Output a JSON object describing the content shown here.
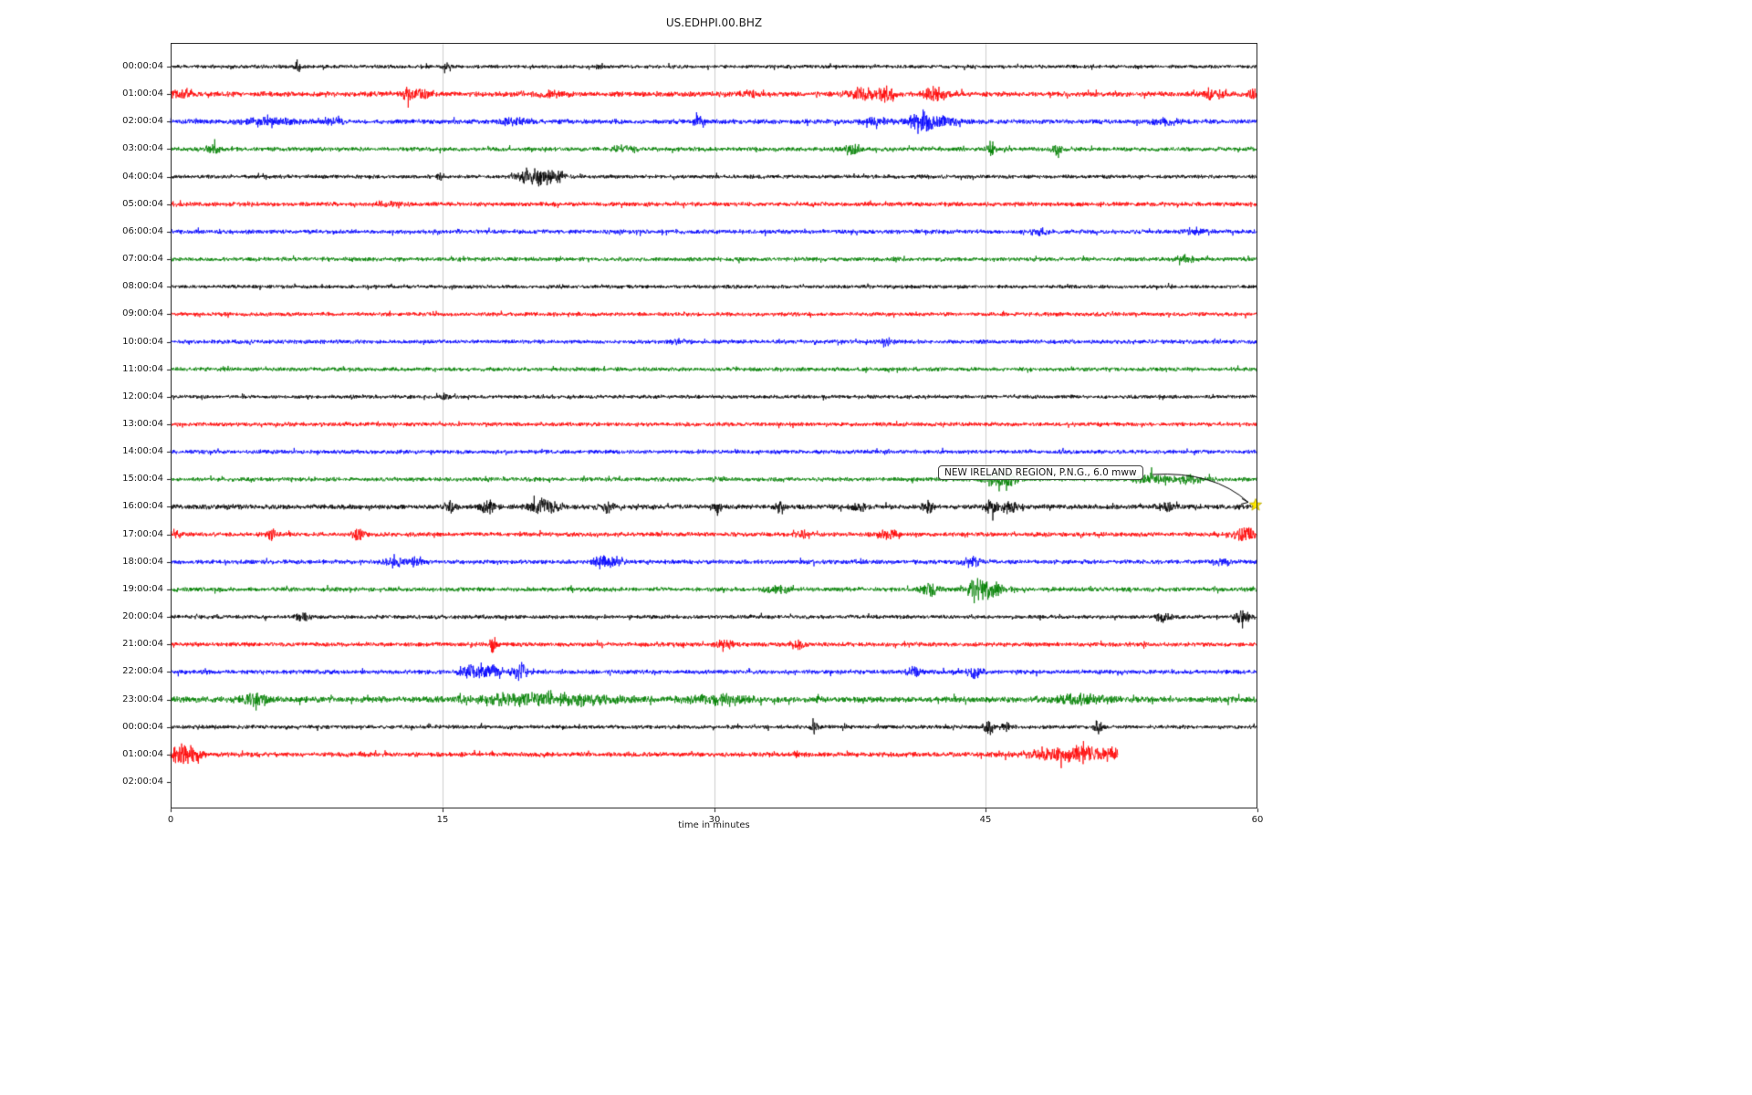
{
  "window": {
    "background": "#ffffff"
  },
  "chart_data": {
    "type": "line",
    "subtype": "seismogram-helicorder",
    "title": "US.EDHPI.00.BHZ",
    "xlabel": "time in minutes",
    "x_range": [
      0,
      60
    ],
    "x_ticks": [
      0,
      15,
      30,
      45,
      60
    ],
    "minutes_per_row": 60,
    "grid": {
      "vertical_ticks": [
        15,
        30,
        45
      ],
      "color": "#cccccc"
    },
    "colors": {
      "black": "#000000",
      "red": "#ff0000",
      "blue": "#0000ff",
      "green": "#008000"
    },
    "events_format": "[minute, extra_amplitude_px, width_minutes]",
    "annotation": {
      "text": "NEW IRELAND REGION, P.N.G., 6.0 mww",
      "target_row_index": 16,
      "target_minute": 59.9,
      "marker": "yellow-star",
      "marker_color": "#ffe600"
    },
    "rows": [
      {
        "label": "00:00:04",
        "color": "#000000",
        "base": 2.2,
        "end_minute": 60,
        "events": [
          [
            7.0,
            9,
            0.15
          ],
          [
            15.2,
            2.5,
            0.3
          ],
          [
            23.7,
            5,
            0.2
          ]
        ]
      },
      {
        "label": "01:00:04",
        "color": "#ff0000",
        "base": 3.0,
        "end_minute": 60,
        "events": [
          [
            0.7,
            6,
            0.5
          ],
          [
            13.2,
            6,
            0.4
          ],
          [
            13.9,
            5,
            0.3
          ],
          [
            21,
            2,
            1
          ],
          [
            32,
            2.5,
            0.5
          ],
          [
            38.2,
            7,
            0.8
          ],
          [
            39.6,
            6,
            0.5
          ],
          [
            42.3,
            8,
            0.6
          ],
          [
            57.5,
            5,
            0.6
          ],
          [
            59.8,
            4,
            0.3
          ]
        ]
      },
      {
        "label": "02:00:04",
        "color": "#0000ff",
        "base": 2.8,
        "end_minute": 60,
        "events": [
          [
            5.5,
            4,
            1.5
          ],
          [
            9,
            3,
            0.5
          ],
          [
            19,
            3,
            0.8
          ],
          [
            29.2,
            7,
            0.3
          ],
          [
            39,
            3,
            0.8
          ],
          [
            41.5,
            11,
            0.7
          ],
          [
            42.6,
            5,
            0.8
          ],
          [
            55,
            3,
            0.8
          ]
        ]
      },
      {
        "label": "03:00:04",
        "color": "#008000",
        "base": 2.5,
        "end_minute": 60,
        "events": [
          [
            2.3,
            5,
            0.4
          ],
          [
            25,
            3,
            0.6
          ],
          [
            37.6,
            7,
            0.4
          ],
          [
            45.3,
            9,
            0.2
          ],
          [
            48.9,
            6,
            0.3
          ]
        ]
      },
      {
        "label": "04:00:04",
        "color": "#000000",
        "base": 2.2,
        "end_minute": 60,
        "events": [
          [
            14.9,
            5,
            0.2
          ],
          [
            19.6,
            8,
            0.5
          ],
          [
            20.5,
            10,
            0.6
          ],
          [
            21.3,
            6,
            0.4
          ]
        ]
      },
      {
        "label": "05:00:04",
        "color": "#ff0000",
        "base": 2.6,
        "end_minute": 60,
        "events": [
          [
            12,
            2,
            0.8
          ]
        ]
      },
      {
        "label": "06:00:04",
        "color": "#0000ff",
        "base": 2.6,
        "end_minute": 60,
        "events": [
          [
            48,
            2.5,
            0.6
          ],
          [
            56.5,
            3.5,
            0.5
          ]
        ]
      },
      {
        "label": "07:00:04",
        "color": "#008000",
        "base": 2.4,
        "end_minute": 60,
        "events": [
          [
            56,
            3,
            0.5
          ]
        ]
      },
      {
        "label": "08:00:04",
        "color": "#000000",
        "base": 2.2,
        "end_minute": 60,
        "events": []
      },
      {
        "label": "09:00:04",
        "color": "#ff0000",
        "base": 2.4,
        "end_minute": 60,
        "events": []
      },
      {
        "label": "10:00:04",
        "color": "#0000ff",
        "base": 2.4,
        "end_minute": 60,
        "events": [
          [
            28,
            3,
            0.4
          ],
          [
            39.5,
            3,
            0.4
          ]
        ]
      },
      {
        "label": "11:00:04",
        "color": "#008000",
        "base": 2.4,
        "end_minute": 60,
        "events": []
      },
      {
        "label": "12:00:04",
        "color": "#000000",
        "base": 2.2,
        "end_minute": 60,
        "events": [
          [
            15.2,
            3,
            0.2
          ]
        ]
      },
      {
        "label": "13:00:04",
        "color": "#ff0000",
        "base": 2.4,
        "end_minute": 60,
        "events": []
      },
      {
        "label": "14:00:04",
        "color": "#0000ff",
        "base": 2.4,
        "end_minute": 60,
        "events": []
      },
      {
        "label": "15:00:04",
        "color": "#008000",
        "base": 2.5,
        "end_minute": 60,
        "events": [
          [
            45.5,
            10,
            0.5
          ],
          [
            46.3,
            7,
            0.6
          ],
          [
            54.0,
            6,
            0.8
          ],
          [
            56.2,
            4,
            1.0
          ]
        ]
      },
      {
        "label": "16:00:04",
        "color": "#000000",
        "base": 2.9,
        "end_minute": 60,
        "events": [
          [
            15.4,
            6,
            0.3
          ],
          [
            17.5,
            7,
            0.4
          ],
          [
            20.3,
            8,
            0.5
          ],
          [
            21.1,
            5,
            0.4
          ],
          [
            24,
            6,
            0.4
          ],
          [
            30.2,
            7,
            0.2
          ],
          [
            33.6,
            5,
            0.3
          ],
          [
            38,
            4,
            0.4
          ],
          [
            41.8,
            5,
            0.3
          ],
          [
            45.3,
            8,
            0.4
          ],
          [
            46.3,
            6,
            0.4
          ],
          [
            55,
            3,
            0.5
          ]
        ]
      },
      {
        "label": "17:00:04",
        "color": "#ff0000",
        "base": 2.6,
        "end_minute": 60,
        "events": [
          [
            0.3,
            4,
            0.3
          ],
          [
            5.6,
            6,
            0.3
          ],
          [
            10.4,
            6,
            0.3
          ],
          [
            35,
            3,
            0.5
          ],
          [
            39.6,
            5,
            0.5
          ],
          [
            59.3,
            8,
            0.6
          ]
        ]
      },
      {
        "label": "18:00:04",
        "color": "#0000ff",
        "base": 2.6,
        "end_minute": 60,
        "events": [
          [
            12.4,
            6,
            0.5
          ],
          [
            13.6,
            5,
            0.4
          ],
          [
            23.8,
            6,
            0.5
          ],
          [
            24.6,
            4,
            0.5
          ],
          [
            44.2,
            5,
            0.5
          ],
          [
            58,
            3,
            0.5
          ]
        ]
      },
      {
        "label": "19:00:04",
        "color": "#008000",
        "base": 2.6,
        "end_minute": 60,
        "events": [
          [
            33.5,
            4,
            0.6
          ],
          [
            41.9,
            7,
            0.5
          ],
          [
            44.6,
            12,
            0.6
          ],
          [
            45.4,
            6,
            0.8
          ]
        ]
      },
      {
        "label": "20:00:04",
        "color": "#000000",
        "base": 2.3,
        "end_minute": 60,
        "events": [
          [
            7.2,
            4,
            0.5
          ],
          [
            54.8,
            5,
            0.4
          ],
          [
            59.2,
            7,
            0.4
          ]
        ]
      },
      {
        "label": "21:00:04",
        "color": "#ff0000",
        "base": 2.6,
        "end_minute": 60,
        "events": [
          [
            17.8,
            10,
            0.15
          ],
          [
            30.6,
            5,
            0.4
          ],
          [
            34.6,
            6,
            0.3
          ]
        ]
      },
      {
        "label": "22:00:04",
        "color": "#0000ff",
        "base": 2.6,
        "end_minute": 60,
        "events": [
          [
            16.8,
            7,
            0.7
          ],
          [
            18.0,
            6,
            0.5
          ],
          [
            19.3,
            8,
            0.4
          ],
          [
            41,
            4,
            0.5
          ],
          [
            44.4,
            6,
            0.4
          ]
        ]
      },
      {
        "label": "23:00:04",
        "color": "#008000",
        "base": 3.5,
        "end_minute": 60,
        "events": [
          [
            4.6,
            5,
            0.8
          ],
          [
            19,
            5,
            2.5
          ],
          [
            23,
            5,
            2
          ],
          [
            30,
            4,
            2
          ],
          [
            50,
            4,
            1.5
          ]
        ]
      },
      {
        "label": "00:00:04",
        "color": "#000000",
        "base": 2.3,
        "end_minute": 60,
        "events": [
          [
            35.6,
            8,
            0.2
          ],
          [
            45.2,
            7,
            0.3
          ],
          [
            46.1,
            5,
            0.3
          ],
          [
            51.2,
            7,
            0.2
          ]
        ]
      },
      {
        "label": "01:00:04",
        "color": "#ff0000",
        "base": 2.8,
        "end_minute": 52.3,
        "events": [
          [
            0.5,
            9,
            0.6
          ],
          [
            1.2,
            6,
            0.5
          ],
          [
            49,
            5,
            2
          ],
          [
            51,
            6,
            1.5
          ]
        ]
      },
      {
        "label": "02:00:04",
        "color": "#000000",
        "base": 0,
        "end_minute": 0,
        "events": []
      }
    ]
  }
}
